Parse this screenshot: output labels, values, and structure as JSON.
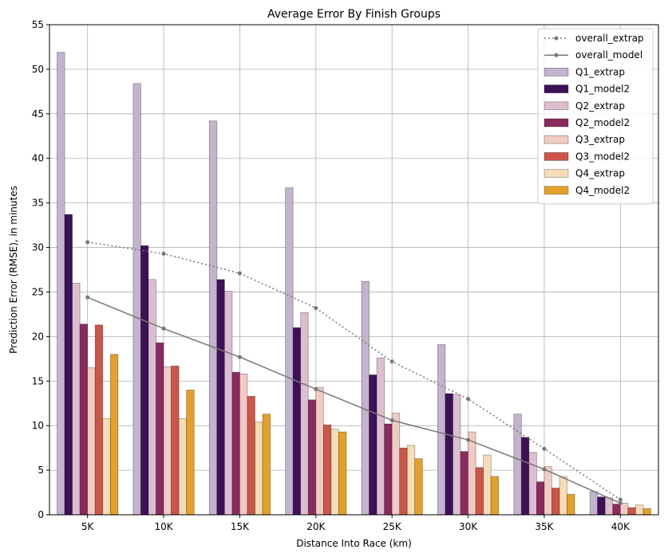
{
  "chart_data": {
    "type": "bar",
    "title": "Average Error By Finish Groups",
    "xlabel": "Distance Into Race (km)",
    "ylabel": "Prediction Error (RMSE), in minutes",
    "categories": [
      "5K",
      "10K",
      "15K",
      "20K",
      "25K",
      "30K",
      "35K",
      "40K"
    ],
    "ylim": [
      0,
      55
    ],
    "yticks": [
      0,
      5,
      10,
      15,
      20,
      25,
      30,
      35,
      40,
      45,
      50,
      55
    ],
    "grid": true,
    "legend_position": "top-right",
    "series": [
      {
        "name": "Q1_extrap",
        "color": "#c3b3cc",
        "values": [
          51.9,
          48.4,
          44.2,
          36.7,
          26.2,
          19.1,
          11.3,
          2.6
        ]
      },
      {
        "name": "Q1_model2",
        "color": "#3c1157",
        "values": [
          33.7,
          30.2,
          26.4,
          21.0,
          15.7,
          13.6,
          8.7,
          2.0
        ]
      },
      {
        "name": "Q2_extrap",
        "color": "#dcbfcf",
        "values": [
          26.0,
          26.4,
          25.1,
          22.7,
          17.6,
          13.5,
          7.0,
          1.9
        ]
      },
      {
        "name": "Q2_model2",
        "color": "#8b2a5f",
        "values": [
          21.4,
          19.3,
          16.0,
          12.9,
          10.2,
          7.1,
          3.7,
          1.2
        ]
      },
      {
        "name": "Q3_extrap",
        "color": "#f0cbc4",
        "values": [
          16.5,
          16.6,
          15.8,
          14.3,
          11.4,
          9.3,
          5.4,
          1.3
        ]
      },
      {
        "name": "Q3_model2",
        "color": "#cc5448",
        "values": [
          21.3,
          16.7,
          13.3,
          10.1,
          7.5,
          5.3,
          3.0,
          0.8
        ]
      },
      {
        "name": "Q4_extrap",
        "color": "#f5ddb8",
        "values": [
          10.8,
          10.8,
          10.4,
          9.6,
          7.8,
          6.7,
          4.3,
          1.1
        ]
      },
      {
        "name": "Q4_model2",
        "color": "#e4a129",
        "values": [
          18.0,
          14.0,
          11.3,
          9.3,
          6.3,
          4.3,
          2.3,
          0.7
        ]
      }
    ],
    "lines": [
      {
        "name": "overall_extrap",
        "style": "dotted",
        "color": "#777777",
        "values": [
          30.6,
          29.3,
          27.1,
          23.2,
          17.2,
          13.0,
          7.4,
          1.7
        ]
      },
      {
        "name": "overall_model",
        "style": "solid",
        "color": "#777777",
        "values": [
          24.4,
          20.9,
          17.7,
          14.1,
          10.6,
          8.4,
          5.1,
          1.3
        ]
      }
    ]
  }
}
